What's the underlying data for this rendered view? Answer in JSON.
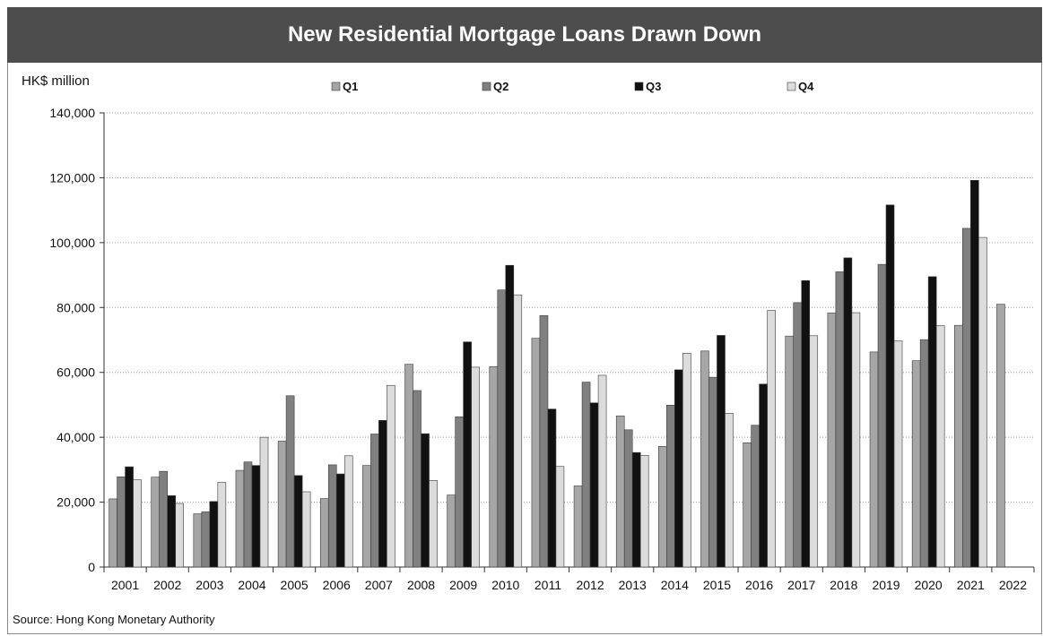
{
  "chart_data": {
    "type": "bar",
    "title": "New Residential Mortgage Loans Drawn Down",
    "ylabel": "HK$ million",
    "xlabel": "",
    "source": "Source: Hong Kong Monetary Authority",
    "ylim": [
      0,
      140000
    ],
    "yticks": [
      "0",
      "20,000",
      "40,000",
      "60,000",
      "80,000",
      "100,000",
      "120,000",
      "140,000"
    ],
    "grid": true,
    "legend_position": "top",
    "categories": [
      "2001",
      "2002",
      "2003",
      "2004",
      "2005",
      "2006",
      "2007",
      "2008",
      "2009",
      "2010",
      "2011",
      "2012",
      "2013",
      "2014",
      "2015",
      "2016",
      "2017",
      "2018",
      "2019",
      "2020",
      "2021",
      "2022"
    ],
    "series": [
      {
        "name": "Q1",
        "color": "#a6a6a6",
        "values": [
          21000,
          27700,
          16400,
          29800,
          38800,
          21100,
          31300,
          62500,
          22200,
          61800,
          70500,
          25000,
          46600,
          37200,
          66600,
          38300,
          71200,
          78300,
          66300,
          63600,
          74500,
          81000
        ]
      },
      {
        "name": "Q2",
        "color": "#808080",
        "values": [
          27800,
          29500,
          17000,
          32400,
          52800,
          31500,
          41000,
          54400,
          46300,
          85400,
          77500,
          57000,
          42300,
          49900,
          58500,
          43700,
          81500,
          91000,
          93300,
          70100,
          104400,
          null
        ]
      },
      {
        "name": "Q3",
        "color": "#111111",
        "values": [
          30900,
          22000,
          20200,
          31300,
          28200,
          28700,
          45200,
          41100,
          69400,
          93000,
          48700,
          50600,
          35300,
          60800,
          71400,
          56400,
          88300,
          95300,
          111600,
          89500,
          119200,
          null
        ]
      },
      {
        "name": "Q4",
        "color": "#dcdcdc",
        "values": [
          26900,
          19600,
          26100,
          40000,
          23200,
          34300,
          56000,
          26700,
          61600,
          83900,
          31000,
          59100,
          34400,
          65900,
          47400,
          79100,
          71300,
          78400,
          69700,
          74400,
          101600,
          null
        ]
      }
    ]
  }
}
